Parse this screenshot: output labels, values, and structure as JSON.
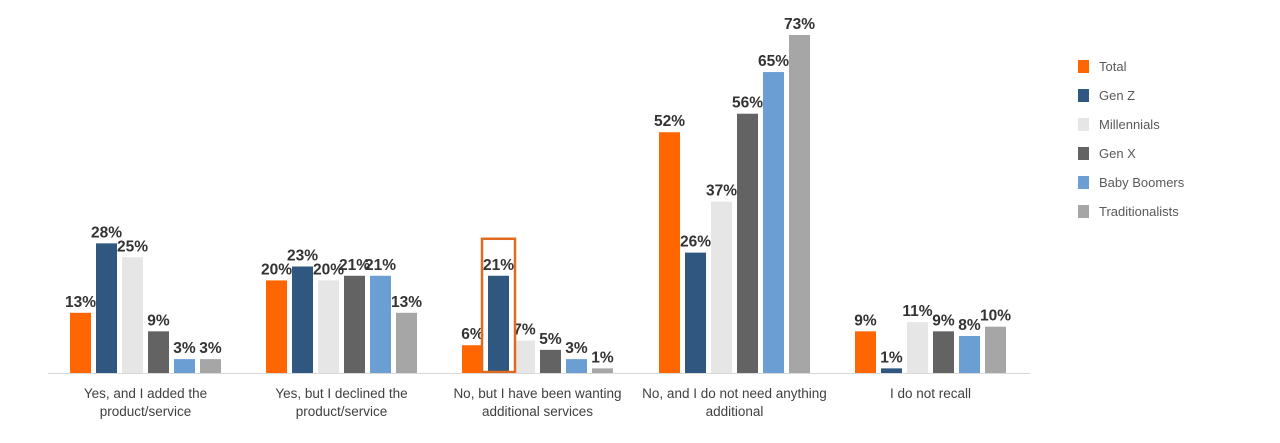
{
  "chart_data": {
    "type": "bar",
    "categories": [
      [
        "Yes, and I added the",
        "product/service"
      ],
      [
        "Yes, but I declined the",
        "product/service"
      ],
      [
        "No, but I have been wanting",
        "additional services"
      ],
      [
        "No, and I do not need anything",
        "additional"
      ],
      [
        "I do not recall"
      ]
    ],
    "series": [
      {
        "name": "Total",
        "color": "#ff6600",
        "values": [
          13,
          20,
          6,
          52,
          9
        ]
      },
      {
        "name": "Gen Z",
        "color": "#2f5780",
        "values": [
          28,
          23,
          21,
          26,
          1
        ]
      },
      {
        "name": "Millennials",
        "color": "#e6e6e6",
        "values": [
          25,
          20,
          7,
          37,
          11
        ]
      },
      {
        "name": "Gen X",
        "color": "#636363",
        "values": [
          9,
          21,
          5,
          56,
          9
        ]
      },
      {
        "name": "Baby Boomers",
        "color": "#6b9fd4",
        "values": [
          3,
          21,
          3,
          65,
          8
        ]
      },
      {
        "name": "Traditionalists",
        "color": "#a6a6a6",
        "values": [
          3,
          13,
          1,
          73,
          10
        ]
      }
    ],
    "value_suffix": "%",
    "ylim": [
      0,
      80
    ],
    "grid": false,
    "legend_position": "right",
    "highlight": {
      "category_index": 2,
      "series_index": 1,
      "color": "#e06a1e"
    }
  }
}
